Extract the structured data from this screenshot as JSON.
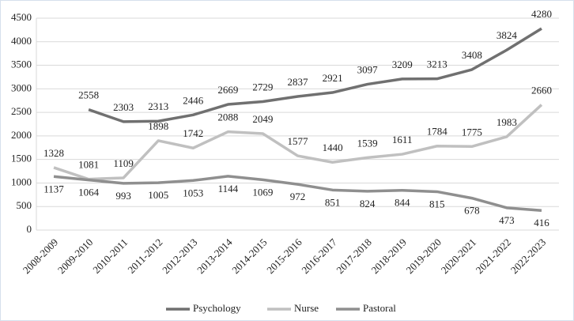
{
  "chart_data": {
    "type": "line",
    "categories": [
      "2008-2009",
      "2009-2010",
      "2010-2011",
      "2011-2012",
      "2012-2013",
      "2013-2014",
      "2014-2015",
      "2015-2016",
      "2016-2017",
      "2017-2018",
      "2018-2019",
      "2019-2020",
      "2020-2021",
      "2021-2022",
      "2022-2023"
    ],
    "series": [
      {
        "name": "Psychology",
        "color": "#707070",
        "values": [
          null,
          2558,
          2303,
          2313,
          2446,
          2669,
          2729,
          2837,
          2921,
          3097,
          3209,
          3213,
          3408,
          3824,
          4280
        ]
      },
      {
        "name": "Nurse",
        "color": "#c0c0c0",
        "values": [
          1328,
          1081,
          1109,
          1898,
          1742,
          2088,
          2049,
          1577,
          1440,
          1539,
          1611,
          1784,
          1775,
          1983,
          2660
        ]
      },
      {
        "name": "Pastoral",
        "color": "#8f8f8f",
        "values": [
          1137,
          1064,
          993,
          1005,
          1053,
          1144,
          1069,
          972,
          851,
          824,
          844,
          815,
          678,
          473,
          416
        ]
      }
    ],
    "ylim": [
      0,
      4500
    ],
    "yticks": [
      0,
      500,
      1000,
      1500,
      2000,
      2500,
      3000,
      3500,
      4000,
      4500
    ],
    "grid": true,
    "legend": "bottom"
  }
}
